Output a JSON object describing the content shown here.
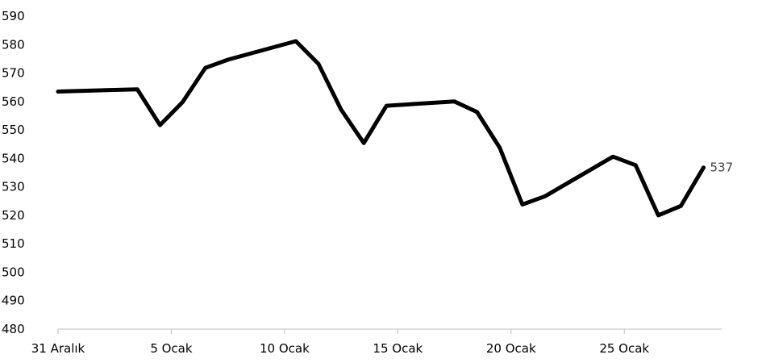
{
  "chart_data": {
    "type": "line",
    "title": "",
    "xlabel": "",
    "ylabel": "",
    "ylim": [
      480,
      590
    ],
    "yticks": [
      480,
      490,
      500,
      510,
      520,
      530,
      540,
      550,
      560,
      570,
      580,
      590
    ],
    "grid": false,
    "legend": "none",
    "x_tick_labels": [
      {
        "day": 0,
        "label": "31 Aralık"
      },
      {
        "day": 5,
        "label": "5 Ocak"
      },
      {
        "day": 10,
        "label": "10 Ocak"
      },
      {
        "day": 15,
        "label": "15 Ocak"
      },
      {
        "day": 20,
        "label": "20 Ocak"
      },
      {
        "day": 25,
        "label": "25 Ocak"
      }
    ],
    "series": [
      {
        "color": "#000000",
        "points": [
          {
            "day": 0,
            "value": 563.5
          },
          {
            "day": 3.5,
            "value": 564.3
          },
          {
            "day": 4.5,
            "value": 551.7
          },
          {
            "day": 5.5,
            "value": 559.8
          },
          {
            "day": 6.5,
            "value": 571.8
          },
          {
            "day": 7.5,
            "value": 574.7
          },
          {
            "day": 10.5,
            "value": 581.2
          },
          {
            "day": 11.5,
            "value": 573.2
          },
          {
            "day": 12.5,
            "value": 557.1
          },
          {
            "day": 13.5,
            "value": 545.4
          },
          {
            "day": 14.5,
            "value": 558.5
          },
          {
            "day": 17.5,
            "value": 560.0
          },
          {
            "day": 18.5,
            "value": 556.3
          },
          {
            "day": 19.5,
            "value": 543.8
          },
          {
            "day": 20.5,
            "value": 523.8
          },
          {
            "day": 21.5,
            "value": 526.7
          },
          {
            "day": 24.5,
            "value": 540.6
          },
          {
            "day": 25.5,
            "value": 537.6
          },
          {
            "day": 26.5,
            "value": 520.0
          },
          {
            "day": 27.5,
            "value": 523.3
          },
          {
            "day": 28.5,
            "value": 536.8
          }
        ]
      }
    ],
    "end_label": "537"
  }
}
